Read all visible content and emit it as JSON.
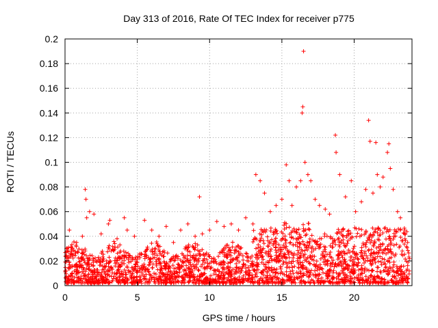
{
  "chart_data": {
    "type": "scatter",
    "title": "Day 313 of 2016, Rate Of TEC Index for receiver p775",
    "xlabel": "GPS time / hours",
    "ylabel": "ROTI / TECUs",
    "xlim": [
      0,
      24
    ],
    "ylim": [
      0,
      0.2
    ],
    "xticks": [
      0,
      5,
      10,
      15,
      20
    ],
    "yticks": [
      0,
      0.02,
      0.04,
      0.06,
      0.08,
      0.1,
      0.12,
      0.14,
      0.16,
      0.18,
      0.2
    ],
    "grid": true,
    "marker": "+",
    "color": "#ff0000",
    "series": [
      {
        "name": "ROTI",
        "x": [
          0.1,
          0.3,
          0.5,
          0.8,
          1.2,
          1.4,
          1.45,
          1.5,
          1.7,
          2.0,
          2.5,
          3.0,
          3.1,
          3.6,
          4.1,
          4.3,
          4.8,
          5.5,
          6.0,
          6.5,
          7.0,
          7.5,
          8.0,
          8.5,
          9.0,
          9.3,
          9.5,
          10.0,
          10.5,
          11.0,
          11.5,
          12.0,
          12.5,
          13.0,
          13.2,
          13.5,
          13.8,
          14.2,
          14.6,
          15.0,
          15.3,
          15.5,
          15.7,
          16.0,
          16.3,
          16.4,
          16.45,
          16.5,
          16.6,
          16.8,
          17.0,
          17.3,
          17.6,
          18.0,
          18.3,
          18.7,
          18.75,
          19.0,
          19.4,
          19.8,
          20.1,
          20.5,
          20.8,
          21.0,
          21.1,
          21.3,
          21.5,
          21.6,
          21.8,
          22.0,
          22.3,
          22.4,
          22.5,
          22.7,
          23.0,
          23.2,
          23.5,
          23.7
        ],
        "y": [
          0.03,
          0.045,
          0.025,
          0.035,
          0.04,
          0.078,
          0.07,
          0.055,
          0.06,
          0.058,
          0.042,
          0.05,
          0.053,
          0.038,
          0.055,
          0.045,
          0.04,
          0.053,
          0.045,
          0.04,
          0.048,
          0.035,
          0.045,
          0.05,
          0.04,
          0.072,
          0.042,
          0.045,
          0.052,
          0.048,
          0.05,
          0.045,
          0.055,
          0.05,
          0.09,
          0.085,
          0.075,
          0.06,
          0.065,
          0.07,
          0.098,
          0.085,
          0.065,
          0.08,
          0.085,
          0.14,
          0.145,
          0.19,
          0.1,
          0.09,
          0.085,
          0.07,
          0.065,
          0.062,
          0.058,
          0.122,
          0.108,
          0.09,
          0.072,
          0.085,
          0.06,
          0.068,
          0.078,
          0.134,
          0.117,
          0.075,
          0.116,
          0.09,
          0.08,
          0.088,
          0.108,
          0.115,
          0.095,
          0.078,
          0.06,
          0.055,
          0.045,
          0.035
        ]
      }
    ]
  }
}
